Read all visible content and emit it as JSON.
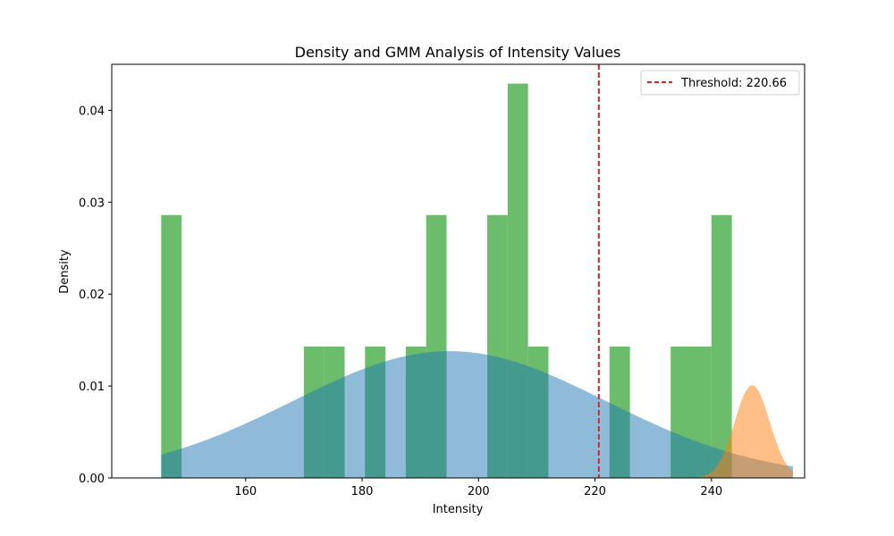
{
  "chart_data": {
    "type": "bar",
    "title": "Density and GMM Analysis of Intensity Values",
    "xlabel": "Intensity",
    "ylabel": "Density",
    "xlim": [
      137,
      256
    ],
    "ylim": [
      0,
      0.045
    ],
    "xticks": [
      160,
      180,
      200,
      220,
      240
    ],
    "yticks": [
      0.0,
      0.01,
      0.02,
      0.03,
      0.04
    ],
    "histogram": {
      "color": "#2ca02c",
      "alpha": 0.7,
      "bin_start": 145.5,
      "bin_width": 3.5,
      "values": [
        0.0286,
        0,
        0,
        0,
        0,
        0,
        0,
        0.0143,
        0.0143,
        0,
        0.0143,
        0,
        0.0143,
        0.0286,
        0,
        0,
        0.0286,
        0.0429,
        0.0143,
        0,
        0,
        0,
        0.0143,
        0,
        0,
        0.0143,
        0.0143,
        0.0286,
        0,
        0,
        0
      ]
    },
    "gmm_components": [
      {
        "color": "#1f77b4",
        "alpha": 0.5,
        "weight": 0.93,
        "mean": 195.0,
        "std": 26.9
      },
      {
        "color": "#ff7f0e",
        "alpha": 0.5,
        "weight": 0.076,
        "mean": 247.0,
        "std": 3.0
      }
    ],
    "threshold": {
      "value": 220.66,
      "color": "#d62728"
    },
    "legend": {
      "label": "Threshold: 220.66",
      "position": "top-right"
    },
    "grid": false
  }
}
